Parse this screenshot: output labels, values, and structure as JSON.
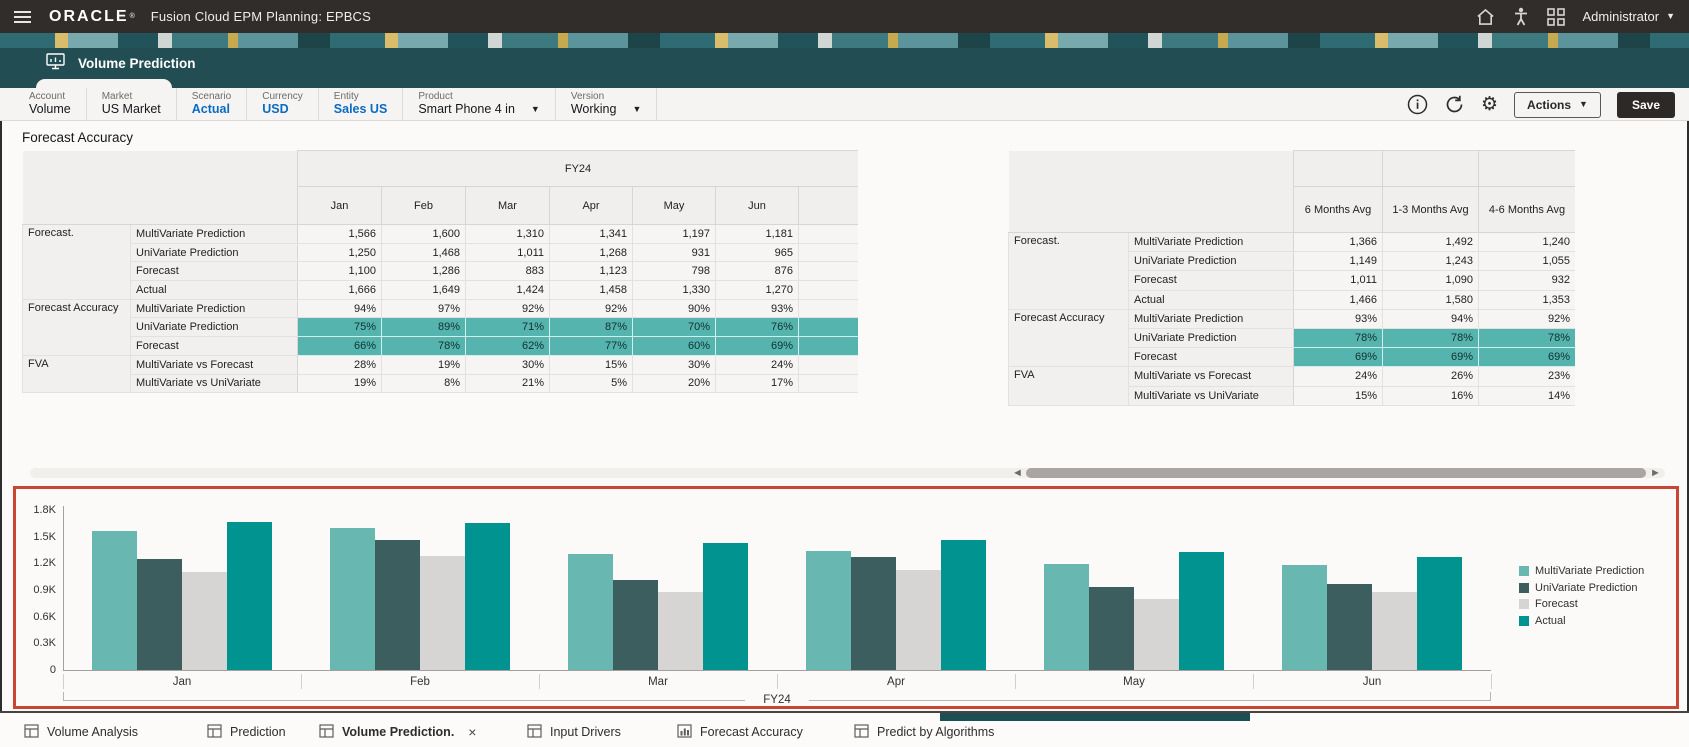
{
  "header": {
    "brand": "ORACLE",
    "brand_mark": "®",
    "title": "Fusion Cloud EPM Planning:  EPBCS",
    "user": "Administrator"
  },
  "banner": {
    "tab_label": "Volume Prediction"
  },
  "pov": {
    "items": [
      {
        "label": "Account",
        "value": "Volume",
        "link": false,
        "caret": false
      },
      {
        "label": "Market",
        "value": "US Market",
        "link": false,
        "caret": false
      },
      {
        "label": "Scenario",
        "value": "Actual",
        "link": true,
        "caret": false
      },
      {
        "label": "Currency",
        "value": "USD",
        "link": true,
        "caret": false
      },
      {
        "label": "Entity",
        "value": "Sales US",
        "link": true,
        "caret": false
      },
      {
        "label": "Product",
        "value": "Smart Phone 4 in",
        "link": false,
        "caret": true
      },
      {
        "label": "Version",
        "value": "Working",
        "link": false,
        "caret": true
      }
    ]
  },
  "toolbar": {
    "actions_label": "Actions",
    "save_label": "Save"
  },
  "page": {
    "title": "Forecast Accuracy"
  },
  "left_table": {
    "year_header": "FY24",
    "columns": [
      "Jan",
      "Feb",
      "Mar",
      "Apr",
      "May",
      "Jun"
    ],
    "groups": [
      {
        "name": "Forecast.",
        "rows": [
          {
            "member": "MultiVariate Prediction",
            "highlight": false,
            "values": [
              "1,566",
              "1,600",
              "1,310",
              "1,341",
              "1,197",
              "1,181"
            ]
          },
          {
            "member": "UniVariate Prediction",
            "highlight": false,
            "values": [
              "1,250",
              "1,468",
              "1,011",
              "1,268",
              "931",
              "965"
            ]
          },
          {
            "member": "Forecast",
            "highlight": false,
            "values": [
              "1,100",
              "1,286",
              "883",
              "1,123",
              "798",
              "876"
            ]
          },
          {
            "member": "Actual",
            "highlight": false,
            "values": [
              "1,666",
              "1,649",
              "1,424",
              "1,458",
              "1,330",
              "1,270"
            ]
          }
        ]
      },
      {
        "name": "Forecast Accuracy",
        "rows": [
          {
            "member": "MultiVariate Prediction",
            "highlight": false,
            "values": [
              "94%",
              "97%",
              "92%",
              "92%",
              "90%",
              "93%"
            ]
          },
          {
            "member": "UniVariate Prediction",
            "highlight": true,
            "values": [
              "75%",
              "89%",
              "71%",
              "87%",
              "70%",
              "76%"
            ]
          },
          {
            "member": "Forecast",
            "highlight": true,
            "values": [
              "66%",
              "78%",
              "62%",
              "77%",
              "60%",
              "69%"
            ]
          }
        ]
      },
      {
        "name": "FVA",
        "rows": [
          {
            "member": "MultiVariate vs Forecast",
            "highlight": false,
            "values": [
              "28%",
              "19%",
              "30%",
              "15%",
              "30%",
              "24%"
            ]
          },
          {
            "member": "MultiVariate vs UniVariate",
            "highlight": false,
            "values": [
              "19%",
              "8%",
              "21%",
              "5%",
              "20%",
              "17%"
            ]
          }
        ]
      }
    ]
  },
  "right_table": {
    "columns": [
      "6 Months Avg",
      "1-3 Months Avg",
      "4-6 Months Avg"
    ],
    "groups": [
      {
        "name": "Forecast.",
        "rows": [
          {
            "member": "MultiVariate Prediction",
            "highlight": false,
            "values": [
              "1,366",
              "1,492",
              "1,240"
            ]
          },
          {
            "member": "UniVariate Prediction",
            "highlight": false,
            "values": [
              "1,149",
              "1,243",
              "1,055"
            ]
          },
          {
            "member": "Forecast",
            "highlight": false,
            "values": [
              "1,011",
              "1,090",
              "932"
            ]
          },
          {
            "member": "Actual",
            "highlight": false,
            "values": [
              "1,466",
              "1,580",
              "1,353"
            ]
          }
        ]
      },
      {
        "name": "Forecast Accuracy",
        "rows": [
          {
            "member": "MultiVariate Prediction",
            "highlight": false,
            "values": [
              "93%",
              "94%",
              "92%"
            ]
          },
          {
            "member": "UniVariate Prediction",
            "highlight": true,
            "values": [
              "78%",
              "78%",
              "78%"
            ]
          },
          {
            "member": "Forecast",
            "highlight": true,
            "values": [
              "69%",
              "69%",
              "69%"
            ]
          }
        ]
      },
      {
        "name": "FVA",
        "rows": [
          {
            "member": "MultiVariate vs Forecast",
            "highlight": false,
            "values": [
              "24%",
              "26%",
              "23%"
            ]
          },
          {
            "member": "MultiVariate vs UniVariate",
            "highlight": false,
            "values": [
              "15%",
              "16%",
              "14%"
            ]
          }
        ]
      }
    ]
  },
  "chart_data": {
    "type": "bar",
    "categories": [
      "Jan",
      "Feb",
      "Mar",
      "Apr",
      "May",
      "Jun"
    ],
    "series": [
      {
        "name": "MultiVariate Prediction",
        "color": "#68b7b1",
        "values": [
          1566,
          1600,
          1310,
          1341,
          1197,
          1181
        ]
      },
      {
        "name": "UniVariate Prediction",
        "color": "#3c5e5f",
        "values": [
          1250,
          1468,
          1011,
          1268,
          931,
          965
        ]
      },
      {
        "name": "Forecast",
        "color": "#d6d5d3",
        "values": [
          1100,
          1286,
          883,
          1123,
          798,
          876
        ]
      },
      {
        "name": "Actual",
        "color": "#009390",
        "values": [
          1666,
          1649,
          1424,
          1458,
          1330,
          1270
        ]
      }
    ],
    "title": "",
    "xlabel": "FY24",
    "ylabel": "",
    "ylim": [
      0,
      1800
    ],
    "ytick_labels": [
      "0",
      "0.3K",
      "0.6K",
      "0.9K",
      "1.2K",
      "1.5K",
      "1.8K"
    ],
    "grid": false,
    "legend_position": "right",
    "highlight_border_color": "#c74634"
  },
  "bottom_tabs": [
    {
      "label": "Volume Analysis",
      "icon": "grid-form-icon",
      "active": false,
      "closable": false
    },
    {
      "label": "Prediction",
      "icon": "grid-form-icon",
      "active": false,
      "closable": false
    },
    {
      "label": "Volume Prediction.",
      "icon": "grid-form-icon",
      "active": true,
      "closable": true,
      "close_glyph": "×"
    },
    {
      "label": "Input Drivers",
      "icon": "grid-form-icon",
      "active": false,
      "closable": false
    },
    {
      "label": "Forecast Accuracy",
      "icon": "chart-form-icon",
      "active": false,
      "closable": false
    },
    {
      "label": "Predict by Algorithms",
      "icon": "grid-form-icon",
      "active": false,
      "closable": false
    }
  ],
  "colors": {
    "header_bg": "#312d2a",
    "banner_teal": "#214d53",
    "highlight_teal": "#56b4ae",
    "chart_frame_red": "#c74634",
    "link_blue": "#0b6bc2"
  }
}
